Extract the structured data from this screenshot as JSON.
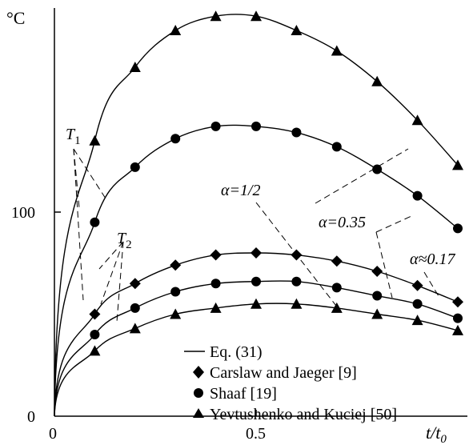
{
  "chart_data": {
    "type": "line",
    "ylabel": "°C",
    "xlabel": "t/t0",
    "xlim": [
      0,
      1
    ],
    "ylim": [
      0,
      200
    ],
    "grid": false,
    "legend_position": "bottom-right",
    "x_ticks": [
      {
        "value": 0,
        "label": "0"
      },
      {
        "value": 0.5,
        "label": "0.5"
      }
    ],
    "y_ticks": [
      {
        "value": 0,
        "label": "0"
      },
      {
        "value": 100,
        "label": "100"
      }
    ],
    "legend": [
      {
        "marker": "line",
        "label": "Eq. (31)"
      },
      {
        "marker": "diamond",
        "label": "Carslaw and Jaeger [9]"
      },
      {
        "marker": "circle",
        "label": "Shaaf [19]"
      },
      {
        "marker": "triangle",
        "label": "Yevtushenko and Kuciej [50]"
      }
    ],
    "annotations": {
      "T1": "T1",
      "T2": "T2",
      "alpha_half": "α=1/2",
      "alpha_035": "α=0.35",
      "alpha_017": "α≈0.17"
    },
    "groups": [
      {
        "temperature": "T1",
        "alpha": "1/2",
        "markers": "triangle",
        "points": [
          [
            0.1,
            135
          ],
          [
            0.2,
            171
          ],
          [
            0.3,
            189
          ],
          [
            0.4,
            196
          ],
          [
            0.5,
            196
          ],
          [
            0.6,
            189
          ],
          [
            0.7,
            179
          ],
          [
            0.8,
            164
          ],
          [
            0.9,
            145
          ],
          [
            1.0,
            123
          ]
        ]
      },
      {
        "temperature": "T1",
        "alpha": "0.35",
        "markers": "circle",
        "points": [
          [
            0.1,
            95
          ],
          [
            0.2,
            122
          ],
          [
            0.3,
            136
          ],
          [
            0.4,
            142
          ],
          [
            0.5,
            142
          ],
          [
            0.6,
            139
          ],
          [
            0.7,
            132
          ],
          [
            0.8,
            121
          ],
          [
            0.9,
            108
          ],
          [
            1.0,
            92
          ]
        ]
      },
      {
        "temperature": "T2",
        "alpha": "0.17",
        "markers": "diamond",
        "points": [
          [
            0.1,
            50
          ],
          [
            0.2,
            65
          ],
          [
            0.3,
            74
          ],
          [
            0.4,
            79
          ],
          [
            0.5,
            80
          ],
          [
            0.6,
            79
          ],
          [
            0.7,
            76
          ],
          [
            0.8,
            71
          ],
          [
            0.9,
            64
          ],
          [
            1.0,
            56
          ]
        ]
      },
      {
        "temperature": "T2",
        "alpha": "0.17",
        "markers": "circle",
        "points": [
          [
            0.1,
            40
          ],
          [
            0.2,
            53
          ],
          [
            0.3,
            61
          ],
          [
            0.4,
            65
          ],
          [
            0.5,
            66
          ],
          [
            0.6,
            66
          ],
          [
            0.7,
            63
          ],
          [
            0.8,
            59
          ],
          [
            0.9,
            55
          ],
          [
            1.0,
            48
          ]
        ]
      },
      {
        "temperature": "T2",
        "alpha": "0.17",
        "markers": "triangle",
        "points": [
          [
            0.1,
            32
          ],
          [
            0.2,
            43
          ],
          [
            0.3,
            50
          ],
          [
            0.4,
            53
          ],
          [
            0.5,
            55
          ],
          [
            0.6,
            55
          ],
          [
            0.7,
            53
          ],
          [
            0.8,
            50
          ],
          [
            0.9,
            47
          ],
          [
            1.0,
            42
          ]
        ]
      }
    ]
  }
}
